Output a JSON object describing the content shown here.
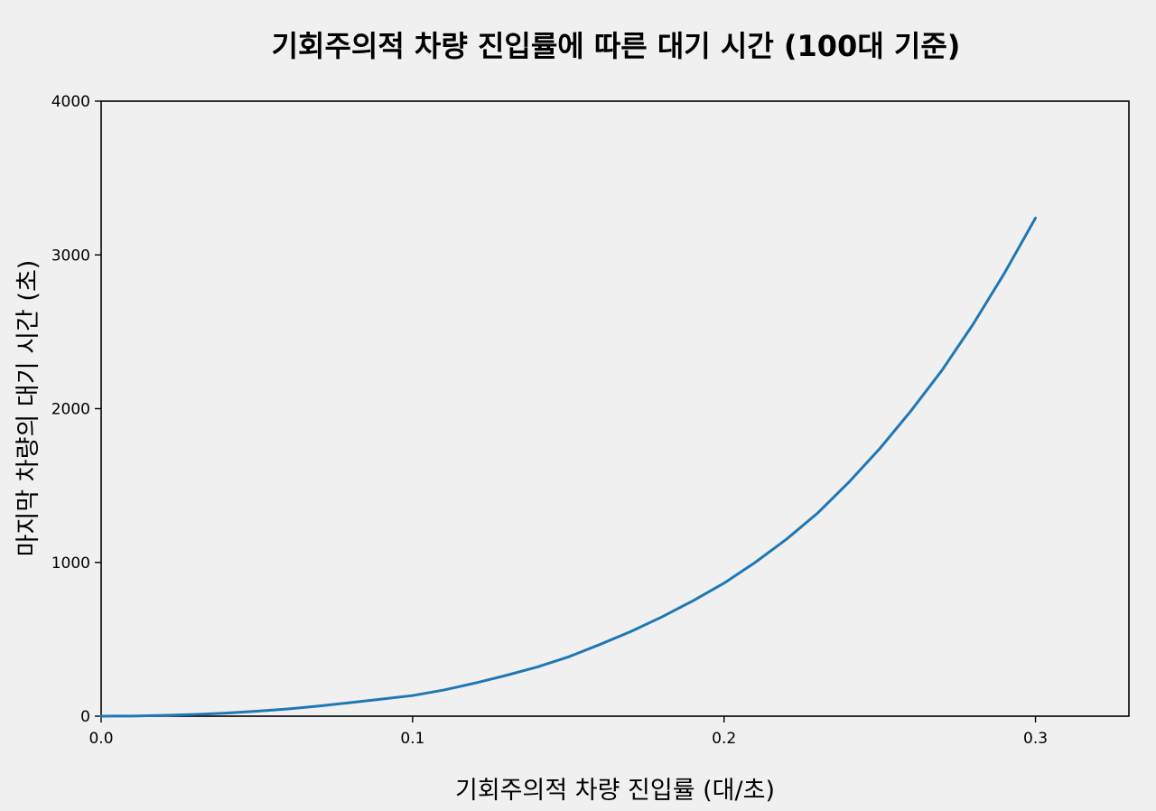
{
  "chart_data": {
    "type": "line",
    "title": "기회주의적 차량 진입률에 따른 대기 시간 (100대 기준)",
    "xlabel": "기회주의적 차량 진입률 (대/초)",
    "ylabel": "마지막 차량의 대기 시간 (초)",
    "xlim": [
      0,
      0.33
    ],
    "ylim": [
      0,
      4000
    ],
    "x_ticks": [
      "0.0",
      "0.1",
      "0.2",
      "0.3"
    ],
    "y_ticks": [
      "0",
      "1000",
      "2000",
      "3000",
      "4000"
    ],
    "grid": false,
    "series": [
      {
        "color": "#1f77b4",
        "x": [
          0,
          0.01,
          0.02,
          0.03,
          0.04,
          0.05,
          0.06,
          0.07,
          0.08,
          0.09,
          0.1,
          0.11,
          0.12,
          0.13,
          0.14,
          0.15,
          0.16,
          0.17,
          0.18,
          0.19,
          0.2,
          0.21,
          0.22,
          0.23,
          0.24,
          0.25,
          0.26,
          0.27,
          0.28,
          0.29,
          0.3
        ],
        "y": [
          0,
          1,
          5,
          11,
          20,
          32,
          47,
          66,
          88,
          111,
          134,
          170,
          215,
          265,
          320,
          385,
          465,
          550,
          645,
          750,
          865,
          1000,
          1150,
          1320,
          1520,
          1740,
          1985,
          2250,
          2550,
          2880,
          3240
        ]
      }
    ]
  }
}
